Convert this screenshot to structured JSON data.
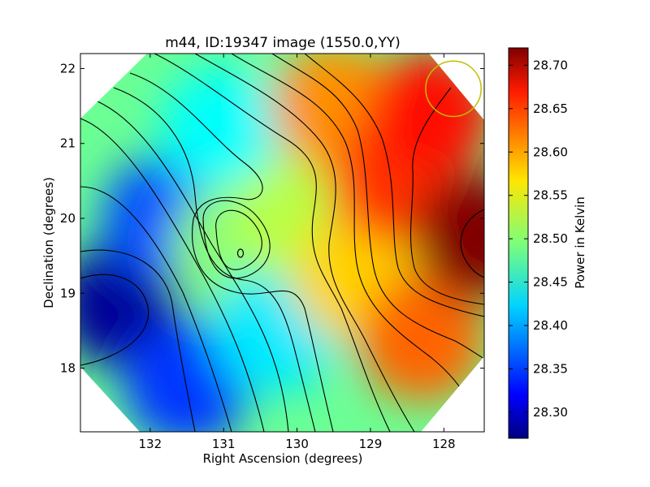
{
  "chart_data": {
    "type": "heatmap",
    "title": "m44, ID:19347 image (1550.0,YY)",
    "xlabel": "Right Ascension (degrees)",
    "ylabel": "Declination (degrees)",
    "xlim": [
      132.95,
      127.45
    ],
    "ylim": [
      17.15,
      22.2
    ],
    "x_reversed": true,
    "x_ticks": [
      132,
      131,
      130,
      129,
      128
    ],
    "y_ticks": [
      18,
      19,
      20,
      21,
      22
    ],
    "colormap": "jet",
    "colorbar": {
      "label": "Power in Kelvin",
      "range": [
        28.27,
        28.72
      ],
      "ticks": [
        "28.30",
        "28.35",
        "28.40",
        "28.45",
        "28.50",
        "28.55",
        "28.60",
        "28.65",
        "28.70"
      ]
    },
    "contour_annotation": "o",
    "field_shape": "octagon",
    "marker": {
      "type": "circle",
      "color": "#bfbf00",
      "ra": 127.87,
      "dec": 21.73,
      "radius_deg": 0.37
    },
    "grid": false,
    "field_samples": [
      {
        "ra": 132.4,
        "dec": 18.85,
        "value": 28.28
      },
      {
        "ra": 131.8,
        "dec": 20.0,
        "value": 28.36
      },
      {
        "ra": 131.5,
        "dec": 17.8,
        "value": 28.35
      },
      {
        "ra": 131.0,
        "dec": 21.2,
        "value": 28.44
      },
      {
        "ra": 130.85,
        "dec": 19.6,
        "value": 28.5
      },
      {
        "ra": 130.3,
        "dec": 18.5,
        "value": 28.43
      },
      {
        "ra": 130.0,
        "dec": 20.0,
        "value": 28.52
      },
      {
        "ra": 129.5,
        "dec": 21.5,
        "value": 28.6
      },
      {
        "ra": 129.2,
        "dec": 19.2,
        "value": 28.57
      },
      {
        "ra": 128.7,
        "dec": 20.5,
        "value": 28.64
      },
      {
        "ra": 128.3,
        "dec": 18.4,
        "value": 28.62
      },
      {
        "ra": 128.2,
        "dec": 21.4,
        "value": 28.66
      },
      {
        "ra": 127.55,
        "dec": 19.75,
        "value": 28.72
      }
    ]
  }
}
